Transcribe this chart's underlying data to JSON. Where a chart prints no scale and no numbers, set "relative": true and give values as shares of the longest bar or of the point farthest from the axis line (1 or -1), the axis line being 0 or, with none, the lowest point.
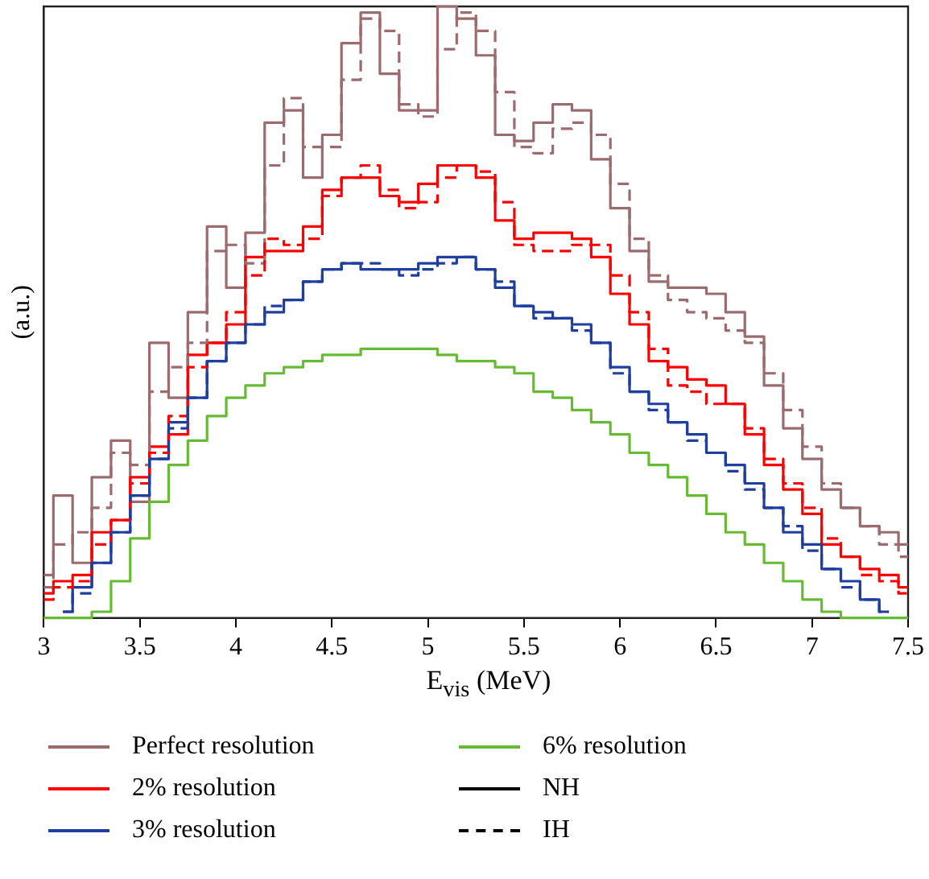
{
  "chart_data": {
    "type": "step",
    "xlabel": "E$_{vis}$ (MeV)",
    "ylabel": "(a.u.)",
    "relative": true,
    "x": [
      3.0,
      3.1,
      3.2,
      3.3,
      3.4,
      3.5,
      3.6,
      3.7,
      3.8,
      3.9,
      4.0,
      4.1,
      4.2,
      4.3,
      4.4,
      4.5,
      4.6,
      4.7,
      4.8,
      4.9,
      5.0,
      5.1,
      5.2,
      5.3,
      5.4,
      5.5,
      5.6,
      5.7,
      5.8,
      5.9,
      6.0,
      6.1,
      6.2,
      6.3,
      6.4,
      6.5,
      6.6,
      6.7,
      6.8,
      6.9,
      7.0,
      7.1,
      7.2,
      7.3,
      7.4,
      7.5
    ],
    "xlim": [
      3,
      7.5
    ],
    "xticks": [
      3,
      3.5,
      4,
      4.5,
      5,
      5.5,
      6,
      6.5,
      7,
      7.5
    ],
    "grid": false,
    "legend": "bottom",
    "marker": "none",
    "series": [
      {
        "name": "Perfect resolution",
        "color": "#9c6b6e",
        "line_style": "solid",
        "values": [
          0.07,
          0.2,
          0.09,
          0.23,
          0.29,
          0.19,
          0.45,
          0.36,
          0.5,
          0.64,
          0.54,
          0.63,
          0.81,
          0.83,
          0.72,
          0.79,
          0.94,
          0.99,
          0.89,
          0.83,
          0.83,
          1.0,
          0.98,
          0.92,
          0.79,
          0.78,
          0.81,
          0.84,
          0.83,
          0.75,
          0.67,
          0.6,
          0.55,
          0.54,
          0.54,
          0.53,
          0.5,
          0.46,
          0.38,
          0.31,
          0.26,
          0.21,
          0.18,
          0.15,
          0.14,
          0.12
        ]
      },
      {
        "name": "2% resolution",
        "color": "#ff0000",
        "line_style": "solid",
        "values": [
          0.04,
          0.06,
          0.07,
          0.14,
          0.16,
          0.23,
          0.28,
          0.3,
          0.43,
          0.45,
          0.48,
          0.59,
          0.6,
          0.6,
          0.64,
          0.7,
          0.72,
          0.72,
          0.69,
          0.68,
          0.71,
          0.74,
          0.74,
          0.72,
          0.65,
          0.62,
          0.63,
          0.63,
          0.62,
          0.59,
          0.53,
          0.48,
          0.42,
          0.41,
          0.39,
          0.38,
          0.35,
          0.3,
          0.25,
          0.21,
          0.17,
          0.12,
          0.1,
          0.08,
          0.07,
          0.05
        ]
      },
      {
        "name": "3% resolution",
        "color": "#1f3fa0",
        "line_style": "solid",
        "values": [
          null,
          0.01,
          0.05,
          0.09,
          0.14,
          0.2,
          0.26,
          0.32,
          0.36,
          0.42,
          0.45,
          0.48,
          0.5,
          0.52,
          0.55,
          0.57,
          0.58,
          0.57,
          0.57,
          0.57,
          0.58,
          0.59,
          0.59,
          0.57,
          0.54,
          0.51,
          0.5,
          0.49,
          0.48,
          0.45,
          0.41,
          0.37,
          0.35,
          0.32,
          0.3,
          0.27,
          0.25,
          0.22,
          0.18,
          0.14,
          0.12,
          0.08,
          0.06,
          0.03,
          0.01,
          null
        ]
      },
      {
        "name": "6% resolution",
        "color": "#66bb33",
        "line_style": "solid",
        "values": [
          0.0,
          0.0,
          0.0,
          0.01,
          0.06,
          0.13,
          0.19,
          0.25,
          0.29,
          0.33,
          0.36,
          0.38,
          0.4,
          0.41,
          0.42,
          0.43,
          0.43,
          0.44,
          0.44,
          0.44,
          0.44,
          0.43,
          0.42,
          0.42,
          0.41,
          0.4,
          0.37,
          0.36,
          0.34,
          0.32,
          0.3,
          0.27,
          0.25,
          0.23,
          0.2,
          0.17,
          0.14,
          0.12,
          0.09,
          0.06,
          0.03,
          0.01,
          0.0,
          0.0,
          0.0,
          0.0
        ]
      },
      {
        "name": "NH",
        "color": "#000000",
        "line_style": "solid",
        "values": [
          null,
          null,
          null,
          null,
          null,
          null,
          null,
          null,
          null,
          null,
          null,
          null,
          null,
          null,
          null,
          null,
          null,
          null,
          null,
          null,
          null,
          null,
          null,
          null,
          null,
          null,
          null,
          null,
          null,
          null,
          null,
          null,
          null,
          null,
          null,
          null,
          null,
          null,
          null,
          null,
          null,
          null,
          null,
          null,
          null,
          null
        ]
      },
      {
        "name": "IH",
        "color": "#000000",
        "line_style": "dashed",
        "values": [
          null,
          null,
          null,
          null,
          null,
          null,
          null,
          null,
          null,
          null,
          null,
          null,
          null,
          null,
          null,
          null,
          null,
          null,
          null,
          null,
          null,
          null,
          null,
          null,
          null,
          null,
          null,
          null,
          null,
          null,
          null,
          null,
          null,
          null,
          null,
          null,
          null,
          null,
          null,
          null,
          null,
          null,
          null,
          null,
          null,
          null
        ]
      },
      {
        "color": "#9c6b6e",
        "line_style": "dashed",
        "values": [
          0.05,
          0.12,
          0.14,
          0.18,
          0.27,
          0.25,
          0.37,
          0.41,
          0.45,
          0.6,
          0.61,
          0.58,
          0.74,
          0.85,
          0.77,
          0.77,
          0.88,
          0.98,
          0.96,
          0.84,
          0.82,
          0.93,
          0.99,
          0.96,
          0.86,
          0.77,
          0.76,
          0.8,
          0.81,
          0.79,
          0.71,
          0.62,
          0.56,
          0.52,
          0.5,
          0.49,
          0.47,
          0.45,
          0.4,
          0.34,
          0.28,
          0.22,
          0.18,
          0.15,
          0.12,
          0.1
        ]
      },
      {
        "color": "#ff0000",
        "line_style": "dashed",
        "values": [
          0.03,
          0.05,
          0.06,
          0.12,
          0.16,
          0.22,
          0.27,
          0.33,
          0.41,
          0.45,
          0.5,
          0.56,
          0.62,
          0.61,
          0.62,
          0.69,
          0.72,
          0.74,
          0.7,
          0.67,
          0.68,
          0.72,
          0.74,
          0.73,
          0.68,
          0.61,
          0.6,
          0.6,
          0.61,
          0.61,
          0.56,
          0.5,
          0.44,
          0.38,
          0.37,
          0.35,
          0.35,
          0.31,
          0.26,
          0.22,
          0.18,
          0.13,
          0.1,
          0.07,
          0.06,
          0.04
        ]
      },
      {
        "color": "#1f3fa0",
        "line_style": "dashed",
        "values": [
          null,
          0.01,
          0.04,
          0.09,
          0.14,
          0.2,
          0.26,
          0.31,
          0.36,
          0.42,
          0.45,
          0.48,
          0.51,
          0.52,
          0.55,
          0.57,
          0.58,
          0.58,
          0.57,
          0.56,
          0.57,
          0.58,
          0.59,
          0.57,
          0.55,
          0.51,
          0.49,
          0.49,
          0.47,
          0.45,
          0.4,
          0.37,
          0.34,
          0.32,
          0.29,
          0.27,
          0.24,
          0.21,
          0.18,
          0.15,
          0.11,
          0.08,
          0.05,
          0.03,
          0.01,
          null
        ]
      }
    ]
  }
}
